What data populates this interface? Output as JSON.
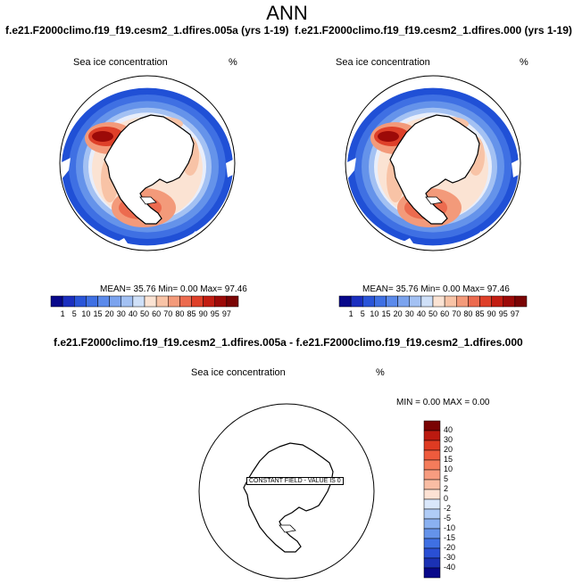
{
  "title": "ANN",
  "panels": [
    {
      "case_title": "f.e21.F2000climo.f19_f19.cesm2_1.dfires.005a (yrs 1-19)",
      "variable": "Sea ice concentration",
      "units": "%",
      "stats": "MEAN=  35.76  Min=   0.00  Max=  97.46"
    },
    {
      "case_title": "f.e21.F2000climo.f19_f19.cesm2_1.dfires.000 (yrs 1-19)",
      "variable": "Sea ice concentration",
      "units": "%",
      "stats": "MEAN=  35.76  Min=   0.00  Max=  97.46"
    }
  ],
  "diff_panel": {
    "case_title": "f.e21.F2000climo.f19_f19.cesm2_1.dfires.005a - f.e21.F2000climo.f19_f19.cesm2_1.dfires.000",
    "variable": "Sea ice concentration",
    "units": "%",
    "stats": "MIN =   0.00 MAX =   0.00",
    "constant_label": "CONSTANT FIELD - VALUE IS 0"
  },
  "colorbar_levels": [
    "1",
    "5",
    "10",
    "15",
    "20",
    "30",
    "40",
    "50",
    "60",
    "70",
    "80",
    "85",
    "90",
    "95",
    "97"
  ],
  "colorbar_colors": [
    "#08088a",
    "#1b2fbf",
    "#2a55d8",
    "#3f70e3",
    "#5b8aeb",
    "#7ba3ee",
    "#a3c1f3",
    "#cfe0f8",
    "#fbe3d3",
    "#f8c3a6",
    "#f39a7a",
    "#ec6b4f",
    "#de4029",
    "#c21d12",
    "#9c0a08",
    "#7a0404"
  ],
  "diff_levels": [
    "40",
    "30",
    "20",
    "15",
    "10",
    "5",
    "2",
    "0",
    "-2",
    "-5",
    "-10",
    "-15",
    "-20",
    "-30",
    "-40"
  ],
  "diff_colors": [
    "#7a0404",
    "#bb1a10",
    "#de3b22",
    "#ee5b3d",
    "#f47c5b",
    "#f79c80",
    "#f9bda4",
    "#fde2d4",
    "#d9e7fb",
    "#b0ccf6",
    "#8ab1f1",
    "#6593ea",
    "#3f70e3",
    "#2a4fd4",
    "#1b31b4",
    "#08088a"
  ]
}
